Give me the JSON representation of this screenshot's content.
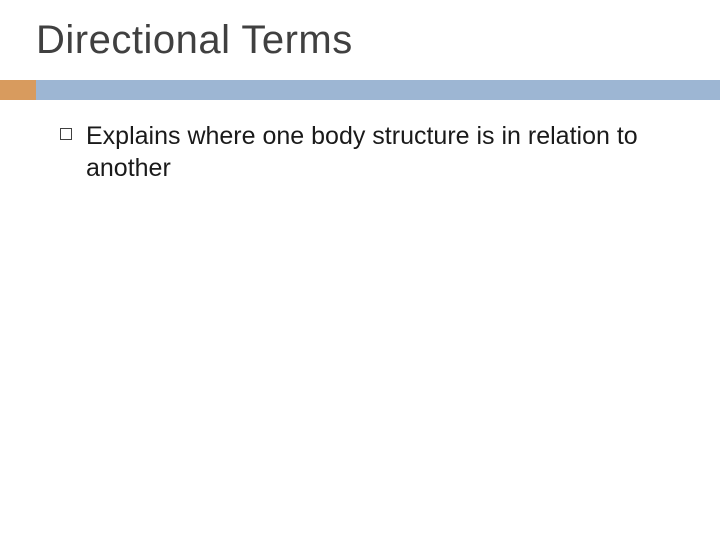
{
  "slide": {
    "title": "Directional Terms",
    "title_color": "#404040",
    "title_fontsize": 40,
    "divider": {
      "accent_color": "#d89b5e",
      "bar_color": "#9db6d3",
      "height": 20,
      "accent_width": 36
    },
    "bullets": [
      {
        "text": "Explains where one body structure is in relation to another",
        "marker_style": "hollow-square",
        "marker_color": "#404040",
        "text_color": "#1a1a1a",
        "fontsize": 25
      }
    ],
    "background_color": "#ffffff"
  }
}
